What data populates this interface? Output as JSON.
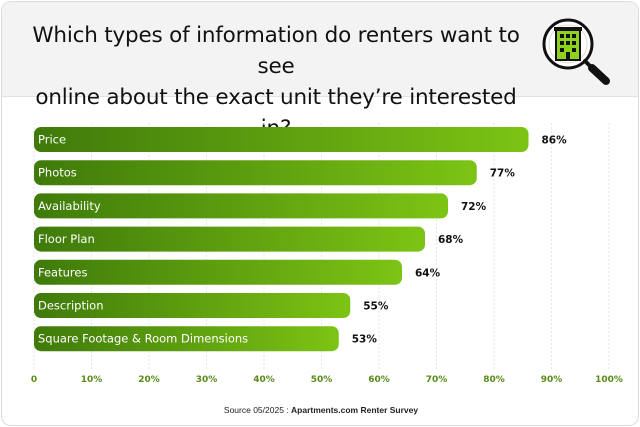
{
  "header": {
    "title_line1": "Which types of information do renters want to see",
    "title_line2": "online about the exact unit they’re interested in?",
    "icon": "building-magnifier-icon"
  },
  "colors": {
    "bar_start": "#3f7a0a",
    "bar_end": "#7cc414",
    "tick_label": "#5a8a1a",
    "header_bg": "#f3f3f3"
  },
  "chart_data": {
    "type": "bar",
    "orientation": "horizontal",
    "categories": [
      "Price",
      "Photos",
      "Availability",
      "Floor Plan",
      "Features",
      "Description",
      "Square Footage & Room Dimensions"
    ],
    "values": [
      86,
      77,
      72,
      68,
      64,
      55,
      53
    ],
    "value_labels": [
      "86%",
      "77%",
      "72%",
      "68%",
      "64%",
      "55%",
      "53%"
    ],
    "xlim": [
      0,
      100
    ],
    "xticks": [
      0,
      10,
      20,
      30,
      40,
      50,
      60,
      70,
      80,
      90,
      100
    ],
    "xtick_labels": [
      "0",
      "10%",
      "20%",
      "30%",
      "40%",
      "50%",
      "60%",
      "70%",
      "80%",
      "90%",
      "100%"
    ],
    "grid": true,
    "legend": "none"
  },
  "footer": {
    "source_prefix": "Source 05/2025 : ",
    "source_name": "Apartments.com Renter Survey"
  }
}
